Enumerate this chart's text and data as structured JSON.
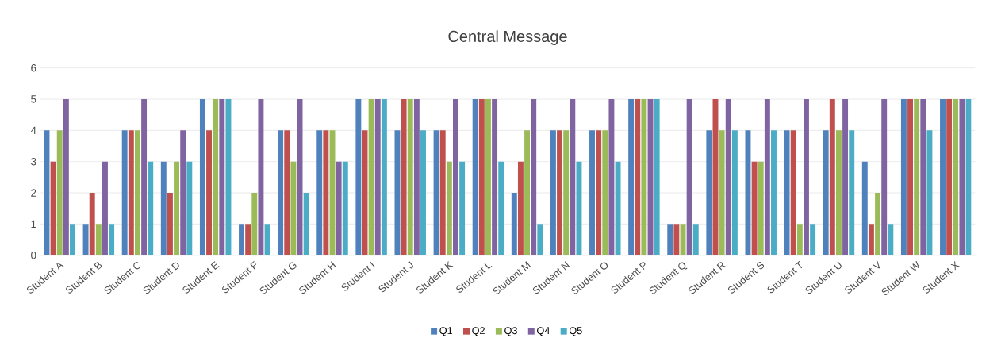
{
  "chart_data": {
    "type": "bar",
    "title": "Central Message",
    "categories": [
      "Student A",
      "Student B",
      "Student C",
      "Student D",
      "Student E",
      "Student F",
      "Student G",
      "Student H",
      "Student I",
      "Student J",
      "Student K",
      "Student L",
      "Student M",
      "Student N",
      "Student O",
      "Student P",
      "Student Q",
      "Student R",
      "Student S",
      "Student T",
      "Student U",
      "Student V",
      "Student W",
      "Student X"
    ],
    "series": [
      {
        "name": "Q1",
        "color": "#4f81bd",
        "values": [
          4,
          1,
          4,
          3,
          5,
          1,
          4,
          4,
          5,
          4,
          4,
          5,
          2,
          4,
          4,
          5,
          1,
          4,
          4,
          4,
          4,
          3,
          5,
          5
        ]
      },
      {
        "name": "Q2",
        "color": "#c0504d",
        "values": [
          3,
          2,
          4,
          2,
          4,
          1,
          4,
          4,
          4,
          5,
          4,
          5,
          3,
          4,
          4,
          5,
          1,
          5,
          3,
          4,
          5,
          1,
          5,
          5
        ]
      },
      {
        "name": "Q3",
        "color": "#9bbb59",
        "values": [
          4,
          1,
          4,
          3,
          5,
          2,
          3,
          4,
          5,
          5,
          3,
          5,
          4,
          4,
          4,
          5,
          1,
          4,
          3,
          1,
          4,
          2,
          5,
          5
        ]
      },
      {
        "name": "Q4",
        "color": "#8064a2",
        "values": [
          5,
          3,
          5,
          4,
          5,
          5,
          5,
          3,
          5,
          5,
          5,
          5,
          5,
          5,
          5,
          5,
          5,
          5,
          5,
          5,
          5,
          5,
          5,
          5
        ]
      },
      {
        "name": "Q5",
        "color": "#4bacc6",
        "values": [
          1,
          1,
          3,
          3,
          5,
          1,
          2,
          3,
          5,
          4,
          3,
          3,
          1,
          3,
          3,
          5,
          1,
          4,
          4,
          1,
          4,
          1,
          4,
          5
        ]
      }
    ],
    "ylim": [
      0,
      6
    ],
    "yticks": [
      0,
      1,
      2,
      3,
      4,
      5,
      6
    ],
    "grid": "y",
    "legend": "bottom"
  }
}
